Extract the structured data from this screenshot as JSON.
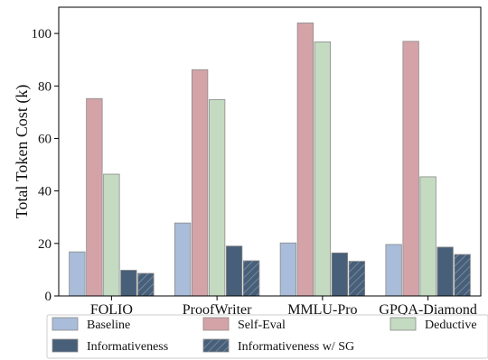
{
  "chart_data": {
    "type": "bar",
    "title": "",
    "xlabel": "",
    "ylabel": "Total Token Cost (k)",
    "ylim": [
      0,
      110
    ],
    "yticks": [
      0,
      20,
      40,
      60,
      80,
      100
    ],
    "categories": [
      "FOLIO",
      "ProofWriter",
      "MMLU-Pro",
      "GPQA-Diamond"
    ],
    "series": [
      {
        "name": "Baseline",
        "values": [
          16.8,
          27.8,
          20.2,
          19.6
        ],
        "color": "#a9bcd9",
        "hatch": false
      },
      {
        "name": "Self-Eval",
        "values": [
          75.2,
          86.2,
          104.0,
          97.0
        ],
        "color": "#d4a3a8",
        "hatch": false
      },
      {
        "name": "Deductive",
        "values": [
          46.4,
          74.8,
          96.8,
          45.4
        ],
        "color": "#c4dbc2",
        "hatch": false
      },
      {
        "name": "Informativeness",
        "values": [
          9.8,
          19.0,
          16.4,
          18.6
        ],
        "color": "#475f79",
        "hatch": false
      },
      {
        "name": "Informativeness w/ SG",
        "values": [
          8.6,
          13.4,
          13.2,
          15.8
        ],
        "color": "#475f79",
        "hatch": true
      }
    ],
    "legend": {
      "placement": "bottom"
    },
    "grid": false
  }
}
